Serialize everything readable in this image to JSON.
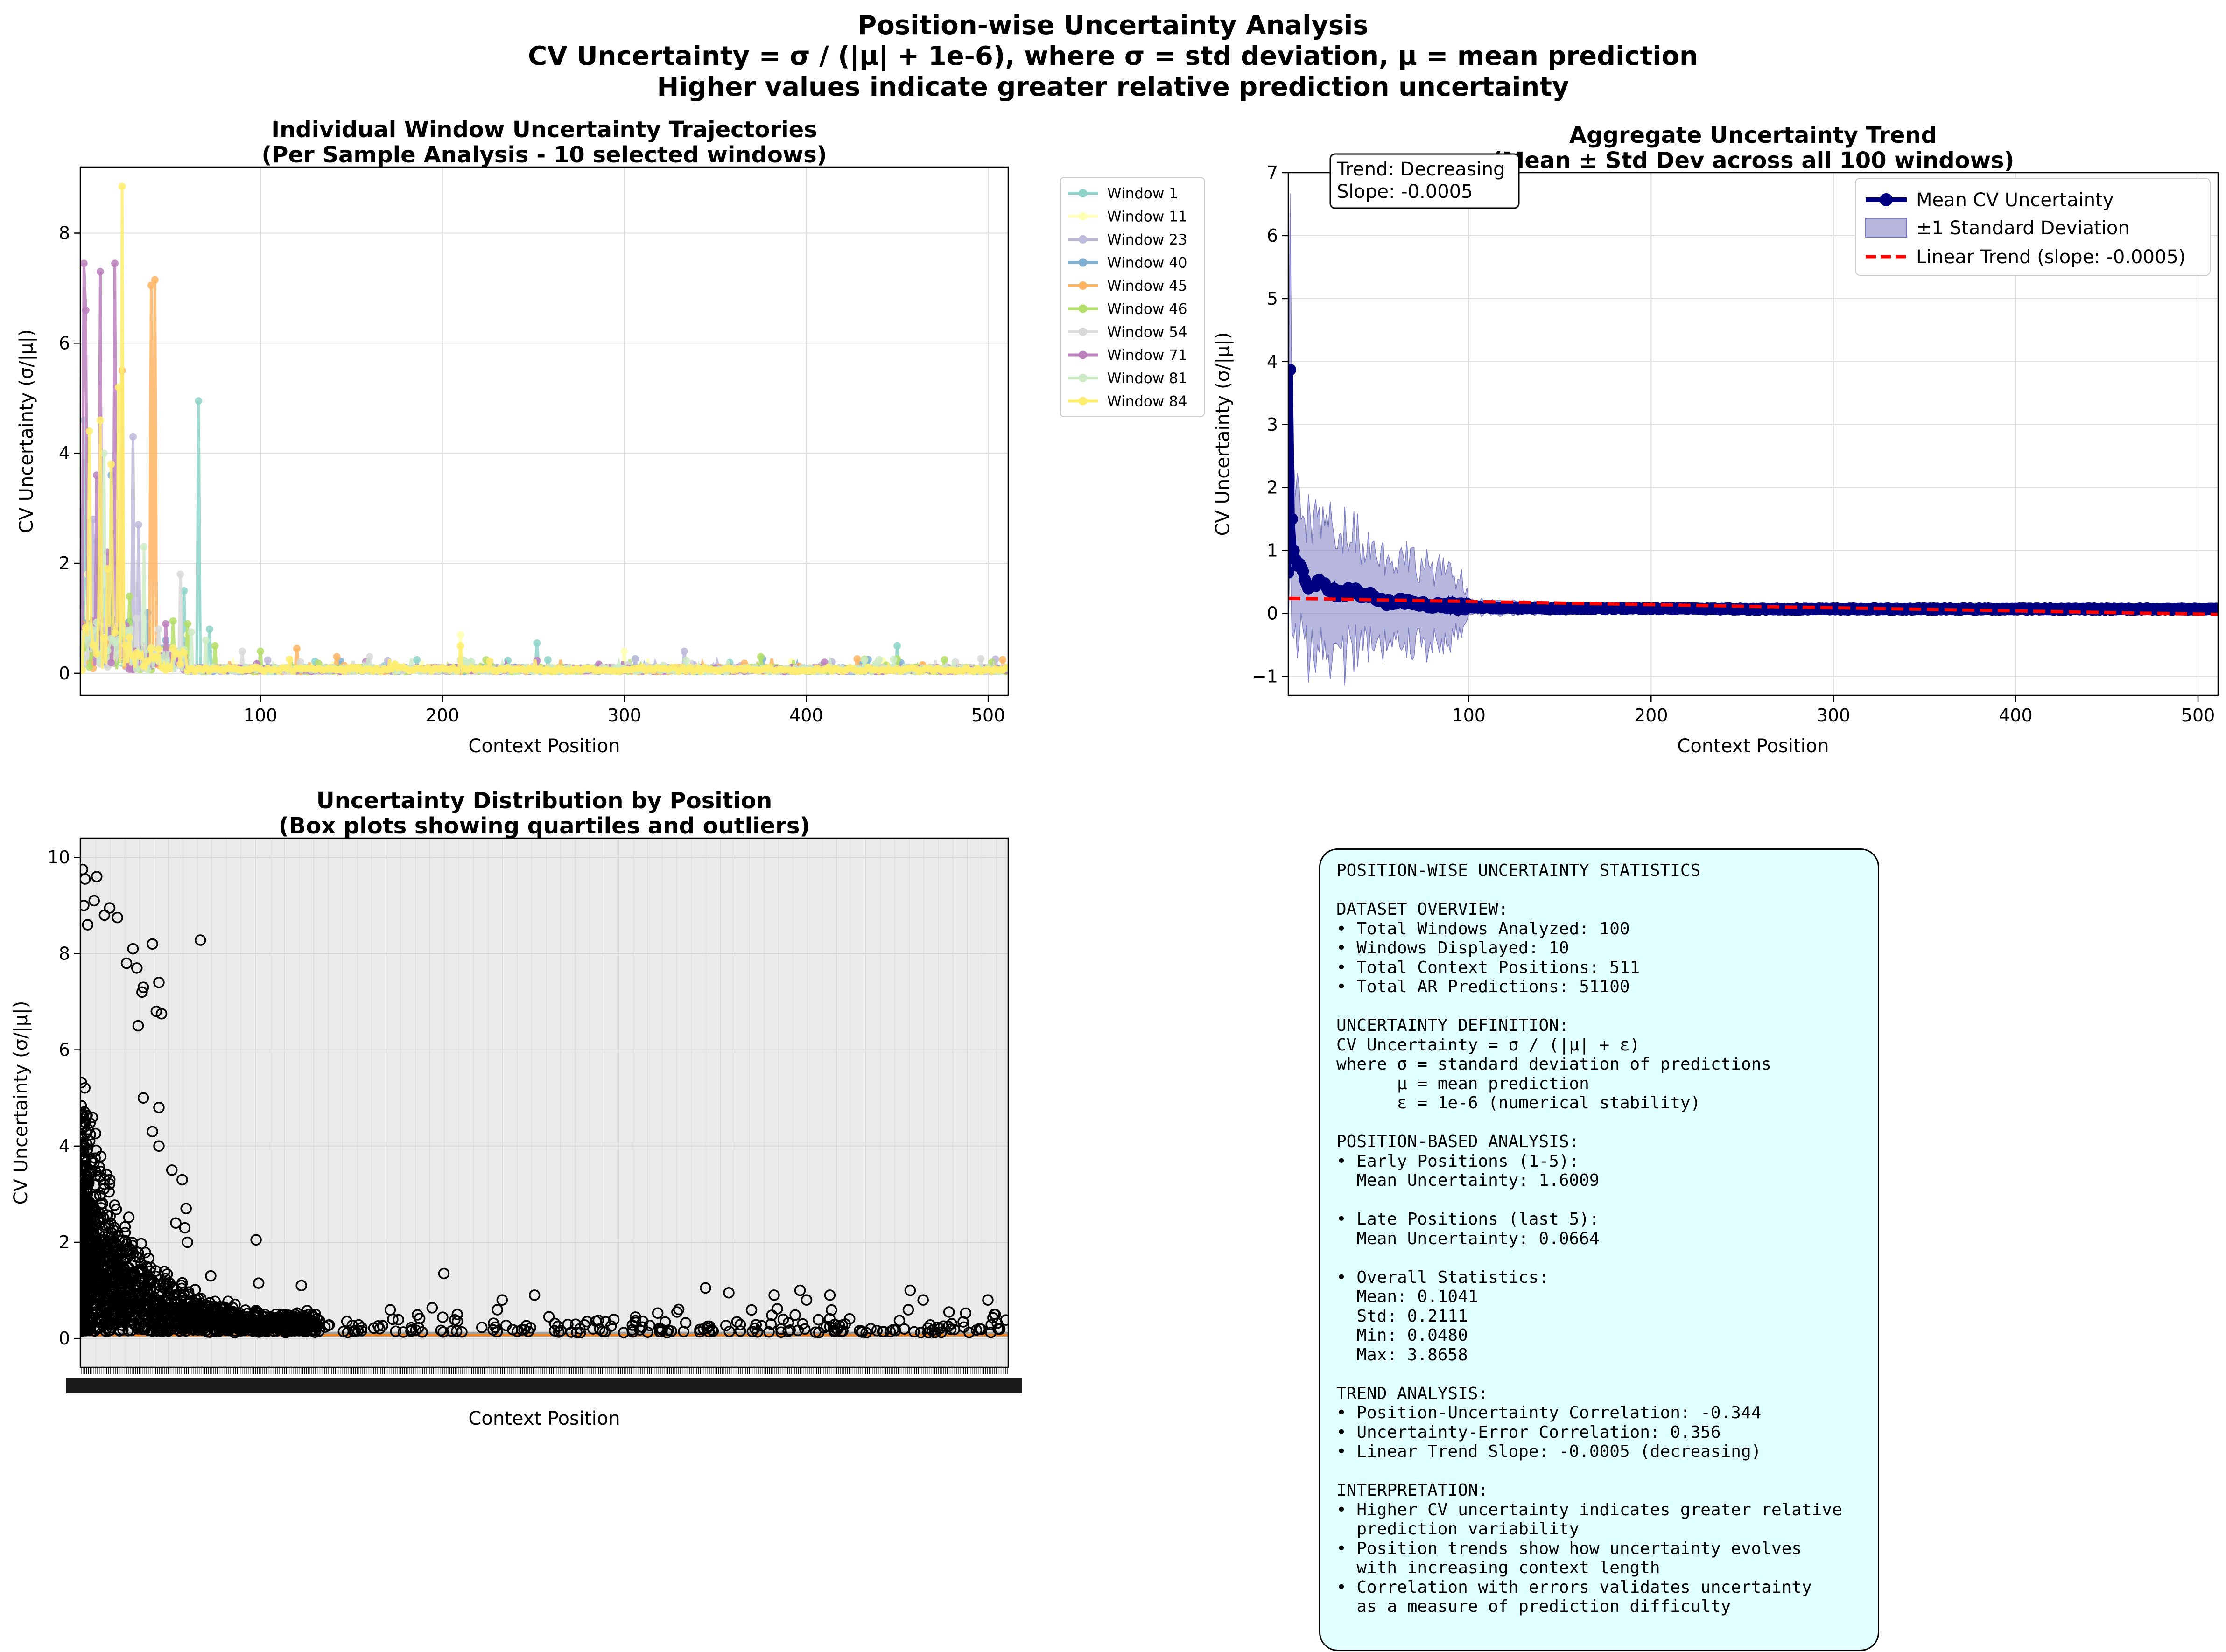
{
  "suptitle": {
    "line1": "Position-wise Uncertainty Analysis",
    "line2": "CV Uncertainty = σ / (|μ| + 1e-6), where σ = std deviation, μ = mean prediction",
    "line3": "Higher values indicate greater relative prediction uncertainty"
  },
  "colors": {
    "mean": "#000080",
    "band": "#7b7bc3",
    "trend": "#ff0000",
    "box_bg": "#eaeaea",
    "median": "#ff7f0e",
    "stats_bg": "#e0ffff"
  },
  "chart_data": [
    {
      "type": "line",
      "title": "Individual Window Uncertainty Trajectories",
      "subtitle": "(Per Sample Analysis - 10 selected windows)",
      "xlabel": "Context Position",
      "ylabel": "CV Uncertainty (σ/|μ|)",
      "xlim": [
        1,
        511
      ],
      "ylim": [
        -0.4,
        9.2
      ],
      "xticks": [
        100,
        200,
        300,
        400,
        500
      ],
      "yticks": [
        0,
        2,
        4,
        6,
        8
      ],
      "grid": true,
      "legend_position": "outside-right",
      "series": [
        {
          "name": "Window 1",
          "color": "#8dd3c7",
          "peaks": [
            [
              3,
              4.6
            ],
            [
              66,
              4.95
            ],
            [
              10,
              2.4
            ],
            [
              252,
              0.55
            ],
            [
              450,
              0.5
            ],
            [
              58,
              1.5
            ],
            [
              72,
              0.8
            ]
          ]
        },
        {
          "name": "Window 11",
          "color": "#ffffb3",
          "peaks": [
            [
              5,
              1.8
            ],
            [
              12,
              3.3
            ],
            [
              40,
              0.9
            ],
            [
              60,
              0.7
            ],
            [
              210,
              0.7
            ],
            [
              300,
              0.4
            ]
          ]
        },
        {
          "name": "Window 23",
          "color": "#bebada",
          "peaks": [
            [
              30,
              4.3
            ],
            [
              33,
              2.7
            ],
            [
              8,
              2.8
            ],
            [
              333,
              0.4
            ],
            [
              38,
              1.1
            ]
          ]
        },
        {
          "name": "Window 40",
          "color": "#80b1d3",
          "peaks": [
            [
              18,
              3.6
            ],
            [
              38,
              1.1
            ],
            [
              15,
              1.5
            ],
            [
              26,
              0.9
            ],
            [
              48,
              0.6
            ]
          ]
        },
        {
          "name": "Window 45",
          "color": "#fdb462",
          "peaks": [
            [
              40,
              7.05
            ],
            [
              42,
              7.15
            ],
            [
              24,
              5.5
            ],
            [
              120,
              0.45
            ],
            [
              142,
              0.3
            ],
            [
              22,
              2.0
            ]
          ]
        },
        {
          "name": "Window 46",
          "color": "#b3de69",
          "peaks": [
            [
              28,
              1.4
            ],
            [
              52,
              0.95
            ],
            [
              60,
              0.9
            ],
            [
              75,
              0.5
            ],
            [
              100,
              0.4
            ],
            [
              375,
              0.3
            ]
          ]
        },
        {
          "name": "Window 54",
          "color": "#d9d9d9",
          "peaks": [
            [
              56,
              1.8
            ],
            [
              32,
              1.0
            ],
            [
              44,
              0.8
            ],
            [
              90,
              0.4
            ],
            [
              160,
              0.3
            ]
          ]
        },
        {
          "name": "Window 71",
          "color": "#bc80bd",
          "peaks": [
            [
              3,
              7.45
            ],
            [
              4,
              6.6
            ],
            [
              12,
              7.3
            ],
            [
              20,
              7.45
            ],
            [
              10,
              3.6
            ],
            [
              16,
              2.2
            ],
            [
              48,
              0.9
            ]
          ]
        },
        {
          "name": "Window 81",
          "color": "#ccebc5",
          "peaks": [
            [
              14,
              4.0
            ],
            [
              36,
              2.3
            ],
            [
              62,
              0.75
            ],
            [
              70,
              0.6
            ],
            [
              440,
              0.25
            ]
          ]
        },
        {
          "name": "Window 84",
          "color": "#ffed6f",
          "peaks": [
            [
              24,
              8.85
            ],
            [
              22,
              5.2
            ],
            [
              6,
              4.4
            ],
            [
              12,
              4.6
            ],
            [
              18,
              3.8
            ],
            [
              16,
              1.9
            ],
            [
              210,
              0.5
            ]
          ]
        }
      ]
    },
    {
      "type": "line",
      "title": "Aggregate Uncertainty Trend",
      "subtitle": "(Mean ± Std Dev across all 100 windows)",
      "xlabel": "Context Position",
      "ylabel": "CV Uncertainty (σ/|μ|)",
      "xlim": [
        1,
        511
      ],
      "ylim": [
        -1.3,
        7.0
      ],
      "xticks": [
        100,
        200,
        300,
        400,
        500
      ],
      "yticks": [
        -1,
        0,
        1,
        2,
        3,
        4,
        5,
        6,
        7
      ],
      "grid": true,
      "legend_position": "top-right",
      "legend": [
        "Mean CV Uncertainty",
        "±1 Standard Deviation",
        "Linear Trend (slope: -0.0005)"
      ],
      "annotation": [
        "Trend: Decreasing",
        "Slope: -0.0005"
      ],
      "mean": {
        "x": [
          1,
          2,
          3,
          4,
          5,
          6,
          7,
          8,
          10,
          12,
          15,
          18,
          22,
          26,
          30,
          35,
          40,
          45,
          50,
          60,
          70,
          80,
          90,
          100,
          120,
          150,
          200,
          250,
          300,
          350,
          400,
          450,
          511
        ],
        "values": [
          0.65,
          3.87,
          1.5,
          1.0,
          0.9,
          0.7,
          0.78,
          0.75,
          0.55,
          0.45,
          0.45,
          0.5,
          0.4,
          0.35,
          0.3,
          0.38,
          0.32,
          0.3,
          0.18,
          0.2,
          0.15,
          0.12,
          0.12,
          0.1,
          0.09,
          0.08,
          0.08,
          0.07,
          0.07,
          0.07,
          0.07,
          0.07,
          0.07
        ]
      },
      "std": {
        "x": [
          1,
          2,
          3,
          4,
          5,
          8,
          12,
          18,
          25,
          35,
          45,
          55,
          65,
          75,
          85,
          95,
          100,
          120,
          150,
          200,
          300,
          511
        ],
        "values": [
          1.1,
          2.8,
          1.8,
          1.4,
          1.3,
          1.2,
          1.05,
          1.0,
          1.0,
          1.05,
          0.8,
          0.7,
          0.7,
          0.65,
          0.55,
          0.45,
          0.12,
          0.1,
          0.08,
          0.07,
          0.06,
          0.06
        ]
      },
      "trend": {
        "x": [
          1,
          511
        ],
        "values": [
          0.24,
          -0.015
        ]
      }
    },
    {
      "type": "box",
      "title": "Uncertainty Distribution by Position",
      "subtitle": "(Box plots showing quartiles and outliers)",
      "xlabel": "Context Position",
      "ylabel": "CV Uncertainty (σ/|μ|)",
      "ylim": [
        -0.6,
        10.4
      ],
      "yticks": [
        0,
        2,
        4,
        6,
        8,
        10
      ],
      "positions": 511,
      "median_level": 0.07,
      "outliers": [
        [
          1,
          9.75
        ],
        [
          3,
          9.55
        ],
        [
          2,
          9.0
        ],
        [
          5,
          8.6
        ],
        [
          10,
          9.1
        ],
        [
          12,
          9.6
        ],
        [
          18,
          8.8
        ],
        [
          22,
          8.95
        ],
        [
          28,
          8.75
        ],
        [
          40,
          8.1
        ],
        [
          35,
          7.8
        ],
        [
          43,
          7.7
        ],
        [
          47,
          7.2
        ],
        [
          48,
          7.3
        ],
        [
          60,
          7.4
        ],
        [
          62,
          6.75
        ],
        [
          55,
          8.2
        ],
        [
          92,
          8.28
        ],
        [
          58,
          6.8
        ],
        [
          44,
          6.5
        ],
        [
          48,
          5.0
        ],
        [
          60,
          4.8
        ],
        [
          55,
          4.3
        ],
        [
          60,
          4.0
        ],
        [
          70,
          3.5
        ],
        [
          78,
          3.3
        ],
        [
          81,
          2.7
        ],
        [
          73,
          2.4
        ],
        [
          82,
          2.0
        ],
        [
          80,
          2.3
        ],
        [
          100,
          1.3
        ],
        [
          135,
          2.05
        ],
        [
          137,
          1.15
        ],
        [
          170,
          1.1
        ],
        [
          280,
          1.35
        ],
        [
          325,
          0.8
        ],
        [
          350,
          0.9
        ],
        [
          460,
          0.55
        ],
        [
          482,
          1.05
        ],
        [
          500,
          0.95
        ],
        [
          535,
          0.9
        ],
        [
          555,
          1.0
        ],
        [
          560,
          0.8
        ],
        [
          578,
          0.9
        ],
        [
          640,
          1.0
        ],
        [
          650,
          0.8
        ],
        [
          670,
          0.55
        ],
        [
          700,
          0.8
        ],
        [
          705,
          0.5
        ]
      ],
      "outlier_scale_max": 715
    }
  ],
  "stats": {
    "text": "POSITION-WISE UNCERTAINTY STATISTICS\n\nDATASET OVERVIEW:\n• Total Windows Analyzed: 100\n• Windows Displayed: 10\n• Total Context Positions: 511\n• Total AR Predictions: 51100\n\nUNCERTAINTY DEFINITION:\nCV Uncertainty = σ / (|μ| + ε)\nwhere σ = standard deviation of predictions\n      μ = mean prediction\n      ε = 1e-6 (numerical stability)\n\nPOSITION-BASED ANALYSIS:\n• Early Positions (1-5):\n  Mean Uncertainty: 1.6009\n\n• Late Positions (last 5):\n  Mean Uncertainty: 0.0664\n\n• Overall Statistics:\n  Mean: 0.1041\n  Std: 0.2111\n  Min: 0.0480\n  Max: 3.8658\n\nTREND ANALYSIS:\n• Position-Uncertainty Correlation: -0.344\n• Uncertainty-Error Correlation: 0.356\n• Linear Trend Slope: -0.0005 (decreasing)\n\nINTERPRETATION:\n• Higher CV uncertainty indicates greater relative\n  prediction variability\n• Position trends show how uncertainty evolves\n  with increasing context length\n• Correlation with errors validates uncertainty\n  as a measure of prediction difficulty"
  }
}
